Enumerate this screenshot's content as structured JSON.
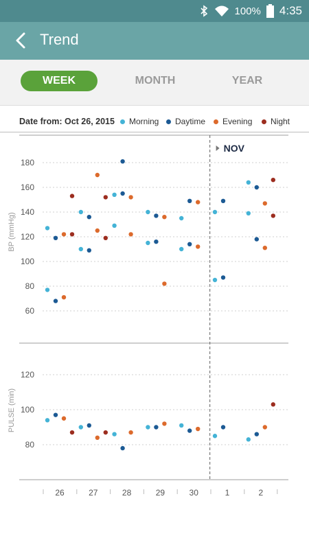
{
  "status_bar": {
    "battery": "100%",
    "time": "4:35"
  },
  "app_bar": {
    "title": "Trend"
  },
  "tabs": [
    {
      "label": "WEEK",
      "active": true
    },
    {
      "label": "MONTH",
      "active": false
    },
    {
      "label": "YEAR",
      "active": false
    }
  ],
  "colors": {
    "morning": "#44b3d6",
    "daytime": "#1c5a94",
    "evening": "#dc6a2c",
    "night": "#9c2d1f",
    "accent": "#5aa23a",
    "header": "#6aa5a6"
  },
  "legend": {
    "date_from": "Date from: Oct 26, 2015",
    "items": [
      {
        "label": "Morning",
        "color": "#44b3d6"
      },
      {
        "label": "Daytime",
        "color": "#1c5a94"
      },
      {
        "label": "Evening",
        "color": "#dc6a2c"
      },
      {
        "label": "Night",
        "color": "#9c2d1f"
      }
    ]
  },
  "chart_data": [
    {
      "type": "scatter",
      "ylabel": "BP  (mmHg)",
      "yticks": [
        60,
        80,
        100,
        120,
        140,
        160,
        180
      ],
      "ylim": [
        50,
        195
      ],
      "categories": [
        "26",
        "27",
        "28",
        "29",
        "30",
        "1",
        "2"
      ],
      "month_marker": {
        "label": "NOV",
        "before_category": "1"
      },
      "series": [
        {
          "name": "Morning",
          "points": [
            [
              "26",
              127
            ],
            [
              "26",
              77
            ],
            [
              "27",
              140
            ],
            [
              "27",
              110
            ],
            [
              "28",
              154
            ],
            [
              "28",
              129
            ],
            [
              "29",
              140
            ],
            [
              "29",
              115
            ],
            [
              "30",
              135
            ],
            [
              "30",
              110
            ],
            [
              "1",
              140
            ],
            [
              "1",
              85
            ],
            [
              "2",
              164
            ],
            [
              "2",
              139
            ]
          ]
        },
        {
          "name": "Daytime",
          "points": [
            [
              "26",
              119
            ],
            [
              "26",
              68
            ],
            [
              "27",
              136
            ],
            [
              "27",
              109
            ],
            [
              "28",
              181
            ],
            [
              "28",
              155
            ],
            [
              "29",
              137
            ],
            [
              "29",
              116
            ],
            [
              "30",
              149
            ],
            [
              "30",
              114
            ],
            [
              "1",
              149
            ],
            [
              "1",
              87
            ],
            [
              "2",
              160
            ],
            [
              "2",
              118
            ]
          ]
        },
        {
          "name": "Evening",
          "points": [
            [
              "26",
              122
            ],
            [
              "26",
              71
            ],
            [
              "27",
              170
            ],
            [
              "27",
              125
            ],
            [
              "28",
              152
            ],
            [
              "28",
              122
            ],
            [
              "29",
              136
            ],
            [
              "29",
              82
            ],
            [
              "30",
              148
            ],
            [
              "30",
              112
            ],
            [
              "2",
              147
            ],
            [
              "2",
              111
            ]
          ]
        },
        {
          "name": "Night",
          "points": [
            [
              "26",
              153
            ],
            [
              "26",
              122
            ],
            [
              "27",
              152
            ],
            [
              "27",
              119
            ],
            [
              "2",
              166
            ],
            [
              "2",
              137
            ]
          ]
        }
      ]
    },
    {
      "type": "scatter",
      "ylabel": "PULSE  (min)",
      "yticks": [
        80,
        100,
        120
      ],
      "ylim": [
        68,
        130
      ],
      "categories": [
        "26",
        "27",
        "28",
        "29",
        "30",
        "1",
        "2"
      ],
      "series": [
        {
          "name": "Morning",
          "points": [
            [
              "26",
              94
            ],
            [
              "27",
              90
            ],
            [
              "28",
              86
            ],
            [
              "29",
              90
            ],
            [
              "30",
              91
            ],
            [
              "1",
              85
            ],
            [
              "2",
              83
            ]
          ]
        },
        {
          "name": "Daytime",
          "points": [
            [
              "26",
              97
            ],
            [
              "27",
              91
            ],
            [
              "28",
              78
            ],
            [
              "29",
              90
            ],
            [
              "30",
              88
            ],
            [
              "1",
              90
            ],
            [
              "2",
              86
            ]
          ]
        },
        {
          "name": "Evening",
          "points": [
            [
              "26",
              95
            ],
            [
              "27",
              84
            ],
            [
              "28",
              87
            ],
            [
              "29",
              92
            ],
            [
              "30",
              89
            ],
            [
              "2",
              90
            ]
          ]
        },
        {
          "name": "Night",
          "points": [
            [
              "26",
              87
            ],
            [
              "27",
              87
            ],
            [
              "2",
              103
            ]
          ]
        }
      ]
    }
  ]
}
